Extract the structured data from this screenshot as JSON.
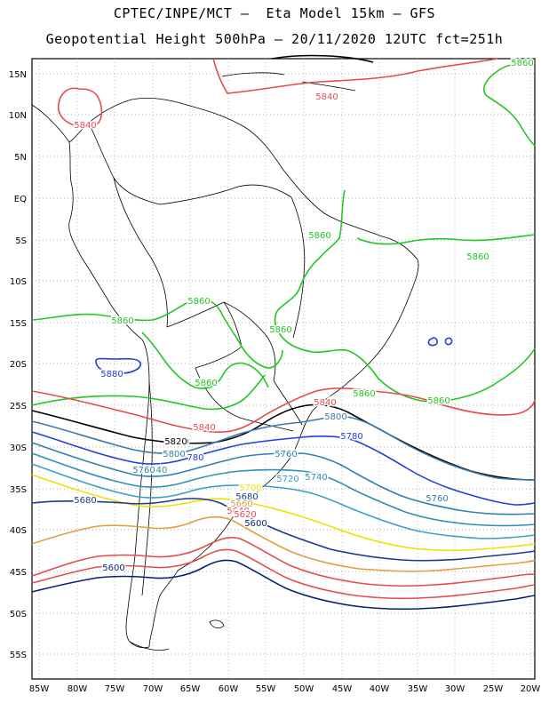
{
  "header": {
    "line1": "CPTEC/INPE/MCT –  Eta Model 15km – GFS",
    "line2": "Geopotential Height 500hPa – 20/11/2020 12UTC fct=251h"
  },
  "axes": {
    "lat_labels": [
      "15N",
      "10N",
      "5N",
      "EQ",
      "5S",
      "10S",
      "15S",
      "20S",
      "25S",
      "30S",
      "35S",
      "40S",
      "45S",
      "50S",
      "55S"
    ],
    "lon_labels": [
      "85W",
      "80W",
      "75W",
      "70W",
      "65W",
      "60W",
      "55W",
      "50W",
      "45W",
      "40W",
      "35W",
      "30W",
      "25W",
      "20W"
    ],
    "grid": true
  },
  "contour_colors": {
    "5600": "#0a1f78",
    "5620": "#e64b4b",
    "5640": "#e64b4b",
    "5660": "#e0a040",
    "5680": "#1a3a8a",
    "5700": "#f0e000",
    "5720": "#3aa0c8",
    "5740": "#3090b0",
    "5760": "#3080b0",
    "5780": "#2040e0",
    "5800": "#3a7aa8",
    "5820": "#000000",
    "5840": "#e64b4b",
    "5860": "#22c822",
    "5880": "#2040e0"
  },
  "contour_labels": [
    {
      "text": "5860",
      "color": "5860"
    },
    {
      "text": "5840",
      "color": "5840"
    },
    {
      "text": "5840",
      "color": "5840"
    },
    {
      "text": "5860",
      "color": "5860"
    },
    {
      "text": "5860",
      "color": "5860"
    },
    {
      "text": "5860",
      "color": "5860"
    },
    {
      "text": "5860",
      "color": "5860"
    },
    {
      "text": "5860",
      "color": "5860"
    },
    {
      "text": "5860",
      "color": "5860"
    },
    {
      "text": "5880",
      "color": "5880"
    },
    {
      "text": "5860",
      "color": "5860"
    },
    {
      "text": "5860",
      "color": "5860"
    },
    {
      "text": "5840",
      "color": "5840"
    },
    {
      "text": "5840",
      "color": "5840"
    },
    {
      "text": "5820",
      "color": "5820"
    },
    {
      "text": "5800",
      "color": "5800"
    },
    {
      "text": "5780",
      "color": "5780"
    },
    {
      "text": "5820",
      "color": "5820"
    },
    {
      "text": "5800",
      "color": "5800"
    },
    {
      "text": "780",
      "color": "5780"
    },
    {
      "text": "5760",
      "color": "5760"
    },
    {
      "text": "40",
      "color": "5740"
    },
    {
      "text": "5760",
      "color": "5760"
    },
    {
      "text": "5720",
      "color": "5720"
    },
    {
      "text": "5740",
      "color": "5740"
    },
    {
      "text": "5700",
      "color": "5700"
    },
    {
      "text": "5680",
      "color": "5680"
    },
    {
      "text": "5660",
      "color": "5660"
    },
    {
      "text": "5640",
      "color": "5640"
    },
    {
      "text": "5620",
      "color": "5620"
    },
    {
      "text": "5600",
      "color": "5600"
    },
    {
      "text": "5680",
      "color": "5680"
    },
    {
      "text": "5760",
      "color": "5760"
    },
    {
      "text": "5600",
      "color": "5600"
    }
  ]
}
